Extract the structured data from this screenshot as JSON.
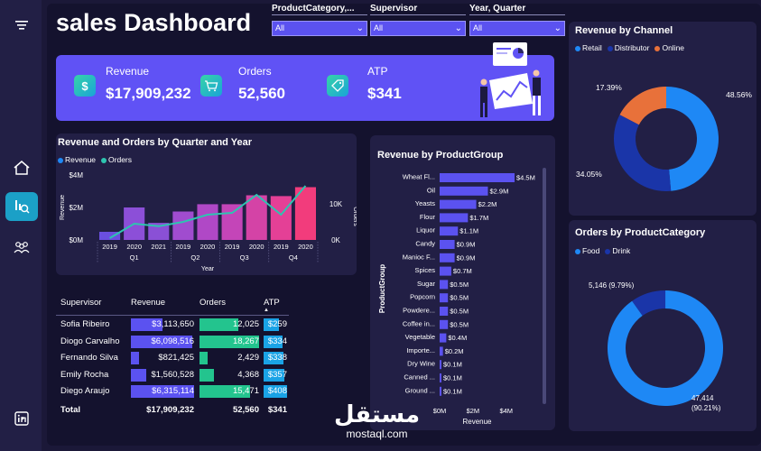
{
  "title": "sales Dashboard",
  "slicers": [
    {
      "label": "ProductCategory,...",
      "value": "All"
    },
    {
      "label": "Supervisor",
      "value": "All"
    },
    {
      "label": "Year, Quarter",
      "value": "All"
    }
  ],
  "kpis": [
    {
      "label": "Revenue",
      "value": "$17,909,232",
      "icon": "dollar-icon"
    },
    {
      "label": "Orders",
      "value": "52,560",
      "icon": "cart-icon"
    },
    {
      "label": "ATP",
      "value": "$341",
      "icon": "tag-icon"
    }
  ],
  "sidebar": [
    "menu-icon",
    "home-icon",
    "analytics-icon",
    "users-icon",
    "linkedin-icon"
  ],
  "combo": {
    "title": "Revenue and Orders by Quarter and Year",
    "legend": [
      "Revenue",
      "Orders"
    ],
    "y_left_ticks": [
      "$4M",
      "$2M",
      "$0M"
    ],
    "y_right_ticks": [
      "10K",
      "0K"
    ],
    "y_left_label": "Revenue",
    "y_right_label": "Orders",
    "x_label": "Year",
    "years": [
      "2019",
      "2020",
      "2021",
      "2019",
      "2020",
      "2019",
      "2020",
      "2019",
      "2020"
    ],
    "quarters": [
      {
        "label": "Q1"
      },
      {
        "label": "Q2"
      },
      {
        "label": "Q3"
      },
      {
        "label": "Q4"
      }
    ]
  },
  "productgroup": {
    "title": "Revenue by ProductGroup",
    "ylabel": "ProductGroup",
    "xlabel": "Revenue",
    "x_ticks": [
      "$0M",
      "$2M",
      "$4M"
    ]
  },
  "channel": {
    "title": "Revenue by Channel",
    "legend": [
      "Retail",
      "Distributor",
      "Online"
    ],
    "labels": [
      "17.39%",
      "48.56%",
      "34.05%"
    ]
  },
  "category": {
    "title": "Orders by ProductCategory",
    "legend": [
      "Food",
      "Drink"
    ],
    "label_drink": "5,146 (9.79%)",
    "label_food_1": "47,414",
    "label_food_2": "(90.21%)"
  },
  "table": {
    "headers": [
      "Supervisor",
      "Revenue",
      "Orders",
      "ATP"
    ],
    "rows": [
      {
        "name": "Sofia Ribeiro",
        "revenue": "$3,113,650",
        "orders": "12,025",
        "atp": "$259"
      },
      {
        "name": "Diogo Carvalho",
        "revenue": "$6,098,516",
        "orders": "18,267",
        "atp": "$334"
      },
      {
        "name": "Fernando Silva",
        "revenue": "$821,425",
        "orders": "2,429",
        "atp": "$338"
      },
      {
        "name": "Emily Rocha",
        "revenue": "$1,560,528",
        "orders": "4,368",
        "atp": "$357"
      },
      {
        "name": "Diego Araujo",
        "revenue": "$6,315,114",
        "orders": "15,471",
        "atp": "$408"
      }
    ],
    "total": {
      "name": "Total",
      "revenue": "$17,909,232",
      "orders": "52,560",
      "atp": "$341"
    }
  },
  "watermark": {
    "arabic": "مستقل",
    "latin": "mostaql.com"
  },
  "colors": {
    "accent": "#6052f5",
    "retail": "#1e88f5",
    "distributor": "#1a35a8",
    "online": "#e8713a",
    "orders_line": "#2ec4b0"
  },
  "chart_data": [
    {
      "type": "bar",
      "title": "Revenue and Orders by Quarter and Year",
      "categories": [
        "2019 Q1",
        "2020 Q1",
        "2021 Q1",
        "2019 Q2",
        "2020 Q2",
        "2019 Q3",
        "2020 Q3",
        "2019 Q4",
        "2020 Q4"
      ],
      "series": [
        {
          "name": "Revenue",
          "values": [
            0.5,
            2.0,
            1.05,
            1.75,
            2.2,
            2.2,
            2.75,
            2.7,
            3.25
          ]
        },
        {
          "name": "Orders",
          "values": [
            0.5,
            4.5,
            3.8,
            5.0,
            7.0,
            7.5,
            12.5,
            7.0,
            15.0
          ]
        }
      ],
      "ylim": [
        0,
        4
      ],
      "y2lim": [
        0,
        18
      ]
    },
    {
      "type": "bar",
      "title": "Revenue by ProductGroup",
      "categories": [
        "Wheat Fl...",
        "Oil",
        "Yeasts",
        "Flour",
        "Liquor",
        "Candy",
        "Manioc F...",
        "Spices",
        "Sugar",
        "Popcorn",
        "Powdere...",
        "Coffee in...",
        "Vegetable",
        "Importe...",
        "Dry Wine",
        "Canned ...",
        "Ground ..."
      ],
      "values": [
        4.5,
        2.9,
        2.2,
        1.7,
        1.1,
        0.9,
        0.9,
        0.7,
        0.5,
        0.5,
        0.5,
        0.5,
        0.4,
        0.2,
        0.1,
        0.1,
        0.1
      ],
      "data_labels": [
        "$4.5M",
        "$2.9M",
        "$2.2M",
        "$1.7M",
        "$1.1M",
        "$0.9M",
        "$0.9M",
        "$0.7M",
        "$0.5M",
        "$0.5M",
        "$0.5M",
        "$0.5M",
        "$0.4M",
        "$0.2M",
        "$0.1M",
        "$0.1M",
        "$0.1M"
      ],
      "xlim": [
        0,
        4.5
      ]
    },
    {
      "type": "pie",
      "title": "Revenue by Channel",
      "categories": [
        "Retail",
        "Distributor",
        "Online"
      ],
      "values": [
        48.56,
        34.05,
        17.39
      ]
    },
    {
      "type": "pie",
      "title": "Orders by ProductCategory",
      "categories": [
        "Food",
        "Drink"
      ],
      "values": [
        47414,
        5146
      ]
    },
    {
      "type": "table",
      "title": "",
      "columns": [
        "Supervisor",
        "Revenue",
        "Orders",
        "ATP"
      ],
      "revenue": [
        3113650,
        6098516,
        821425,
        1560528,
        6315114
      ],
      "orders": [
        12025,
        18267,
        2429,
        4368,
        15471
      ],
      "atp": [
        259,
        334,
        338,
        357,
        408
      ]
    }
  ]
}
